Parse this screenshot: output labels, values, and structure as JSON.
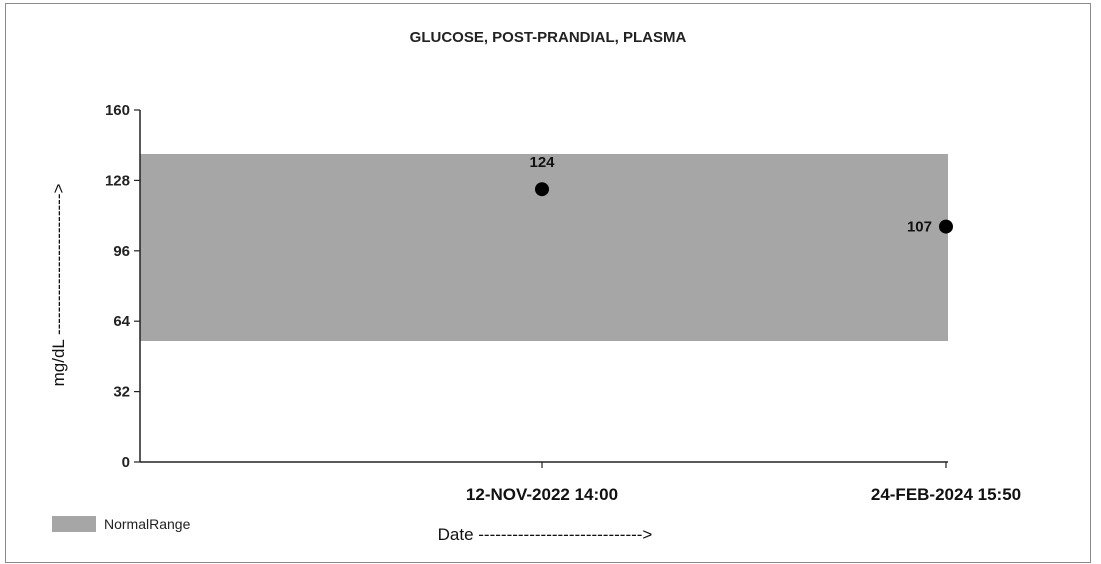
{
  "chart_data": {
    "type": "scatter",
    "title": "GLUCOSE, POST-PRANDIAL, PLASMA",
    "xlabel": "Date ----------------------------->",
    "ylabel": "mg/dL ------------------------->",
    "ylim": [
      0,
      160
    ],
    "yticks": [
      0,
      32,
      64,
      96,
      128,
      160
    ],
    "categories": [
      "12-NOV-2022 14:00",
      "24-FEB-2024 15:50"
    ],
    "values": [
      124,
      107
    ],
    "data_labels": [
      "124",
      "107"
    ],
    "normal_range": {
      "low": 55,
      "high": 140,
      "label": "NormalRange",
      "color": "#a6a6a6"
    },
    "point_color": "#000000",
    "grid": false,
    "legend_position": "bottom-left"
  }
}
